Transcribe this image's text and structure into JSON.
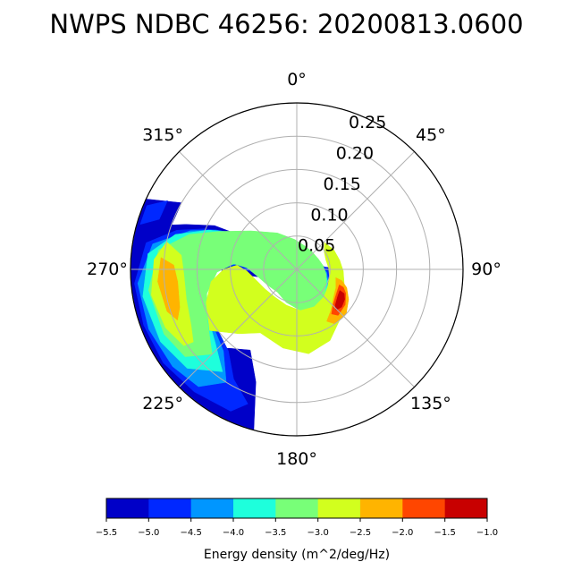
{
  "chart_data": {
    "type": "polar-contour",
    "title": "NWPS NDBC 46256: 20200813.0600",
    "angular_ticks": [
      "0°",
      "45°",
      "90°",
      "135°",
      "180°",
      "225°",
      "270°",
      "315°"
    ],
    "radial_ticks": [
      "0.05",
      "0.10",
      "0.15",
      "0.20",
      "0.25"
    ],
    "radial_tick_values": [
      0.05,
      0.1,
      0.15,
      0.2,
      0.25
    ],
    "radial_max": 0.25,
    "angle_zero": "top",
    "angle_direction": "clockwise",
    "grid": true,
    "colorbar": {
      "label": "Energy density (m^2/deg/Hz)",
      "ticks": [
        "−5.5",
        "−5.0",
        "−4.5",
        "−4.0",
        "−3.5",
        "−3.0",
        "−2.5",
        "−2.0",
        "−1.5",
        "−1.0"
      ],
      "levels": [
        -5.5,
        -5.0,
        -4.5,
        -4.0,
        -3.5,
        -3.0,
        -2.5,
        -2.0,
        -1.5,
        -1.0
      ],
      "colors": [
        "#0000c8",
        "#0028ff",
        "#0096ff",
        "#1effdc",
        "#78ff78",
        "#d2ff1e",
        "#ffb400",
        "#ff4600",
        "#c80000"
      ],
      "orientation": "horizontal",
      "placement": "bottom"
    },
    "contours": [
      {
        "level": -5.5,
        "regions": [
          [
            [
              195,
              0.25
            ],
            [
              200,
              0.18
            ],
            [
              210,
              0.14
            ],
            [
              220,
              0.155
            ],
            [
              232,
              0.19
            ],
            [
              240,
              0.22
            ],
            [
              247,
              0.22
            ],
            [
              258,
              0.21
            ],
            [
              265,
              0.2
            ],
            [
              270,
              0.12
            ],
            [
              262,
              0.07
            ],
            [
              250,
              0.04
            ],
            [
              230,
              0.03
            ],
            [
              200,
              0.02
            ],
            [
              160,
              0.04
            ],
            [
              140,
              0.07
            ],
            [
              125,
              0.085
            ],
            [
              115,
              0.06
            ],
            [
              100,
              0.05
            ],
            [
              88,
              0.055
            ],
            [
              80,
              0.03
            ],
            [
              70,
              0.02
            ],
            [
              60,
              0.015
            ],
            [
              40,
              0.015
            ],
            [
              20,
              0.02
            ],
            [
              5,
              0.03
            ],
            [
              -10,
              0.04
            ],
            [
              -30,
              0.05
            ],
            [
              -55,
              0.07
            ],
            [
              -60,
              0.11
            ],
            [
              -62,
              0.14
            ],
            [
              -68,
              0.18
            ],
            [
              -75,
              0.25
            ],
            [
              -85,
              0.25
            ],
            [
              -95,
              0.25
            ],
            [
              -105,
              0.25
            ],
            [
              -115,
              0.25
            ],
            [
              -125,
              0.25
            ],
            [
              -135,
              0.25
            ],
            [
              -145,
              0.25
            ],
            [
              -155,
              0.25
            ],
            [
              -165,
              0.25
            ]
          ],
          [
            [
              300,
              0.2
            ],
            [
              295,
              0.25
            ],
            [
              285,
              0.25
            ],
            [
              288,
              0.2
            ]
          ]
        ]
      },
      {
        "level": -5.0,
        "regions": [
          [
            [
              200,
              0.215
            ],
            [
              210,
              0.19
            ],
            [
              220,
              0.16
            ],
            [
              232,
              0.15
            ],
            [
              245,
              0.17
            ],
            [
              255,
              0.19
            ],
            [
              268,
              0.17
            ],
            [
              272,
              0.1
            ],
            [
              265,
              0.06
            ],
            [
              250,
              0.045
            ],
            [
              232,
              0.035
            ],
            [
              205,
              0.03
            ],
            [
              175,
              0.05
            ],
            [
              150,
              0.075
            ],
            [
              130,
              0.07
            ],
            [
              118,
              0.06
            ],
            [
              102,
              0.05
            ],
            [
              90,
              0.05
            ],
            [
              78,
              0.035
            ],
            [
              65,
              0.025
            ],
            [
              50,
              0.02
            ],
            [
              35,
              0.02
            ],
            [
              15,
              0.022
            ],
            [
              -5,
              0.03
            ],
            [
              -25,
              0.04
            ],
            [
              -45,
              0.06
            ],
            [
              -57,
              0.09
            ],
            [
              -62,
              0.12
            ],
            [
              -66,
              0.15
            ],
            [
              -72,
              0.19
            ],
            [
              -80,
              0.23
            ],
            [
              -95,
              0.245
            ],
            [
              -110,
              0.245
            ],
            [
              -125,
              0.245
            ],
            [
              -140,
              0.24
            ],
            [
              -155,
              0.235
            ]
          ],
          [
            [
              298,
              0.22
            ],
            [
              293,
              0.245
            ],
            [
              286,
              0.245
            ],
            [
              290,
              0.22
            ]
          ]
        ]
      },
      {
        "level": -4.5,
        "regions": [
          [
            [
              212,
              0.2
            ],
            [
              222,
              0.165
            ],
            [
              240,
              0.15
            ],
            [
              256,
              0.16
            ],
            [
              270,
              0.14
            ],
            [
              275,
              0.09
            ],
            [
              268,
              0.065
            ],
            [
              255,
              0.05
            ],
            [
              235,
              0.038
            ],
            [
              210,
              0.035
            ],
            [
              185,
              0.05
            ],
            [
              160,
              0.07
            ],
            [
              140,
              0.07
            ],
            [
              125,
              0.06
            ],
            [
              110,
              0.05
            ],
            [
              95,
              0.045
            ],
            [
              80,
              0.035
            ],
            [
              62,
              0.03
            ],
            [
              40,
              0.025
            ],
            [
              18,
              0.027
            ],
            [
              -5,
              0.035
            ],
            [
              -28,
              0.048
            ],
            [
              -48,
              0.07
            ],
            [
              -58,
              0.1
            ],
            [
              -64,
              0.135
            ],
            [
              -70,
              0.17
            ],
            [
              -80,
              0.22
            ],
            [
              -95,
              0.24
            ],
            [
              -112,
              0.24
            ],
            [
              -128,
              0.237
            ],
            [
              -140,
              0.23
            ]
          ]
        ]
      },
      {
        "level": -4.0,
        "regions": [
          [
            [
              216,
              0.19
            ],
            [
              228,
              0.165
            ],
            [
              245,
              0.15
            ],
            [
              258,
              0.15
            ],
            [
              270,
              0.13
            ],
            [
              276,
              0.09
            ],
            [
              270,
              0.07
            ],
            [
              257,
              0.055
            ],
            [
              238,
              0.044
            ],
            [
              215,
              0.04
            ],
            [
              190,
              0.05
            ],
            [
              165,
              0.065
            ],
            [
              145,
              0.065
            ],
            [
              128,
              0.058
            ],
            [
              112,
              0.05
            ],
            [
              96,
              0.043
            ],
            [
              80,
              0.038
            ],
            [
              62,
              0.033
            ],
            [
              40,
              0.03
            ],
            [
              18,
              0.032
            ],
            [
              -5,
              0.04
            ],
            [
              -28,
              0.055
            ],
            [
              -48,
              0.078
            ],
            [
              -60,
              0.11
            ],
            [
              -66,
              0.145
            ],
            [
              -74,
              0.19
            ],
            [
              -84,
              0.225
            ],
            [
              -100,
              0.235
            ],
            [
              -118,
              0.232
            ],
            [
              -132,
              0.222
            ]
          ]
        ]
      },
      {
        "level": -3.5,
        "regions": [
          [
            [
              225,
              0.18
            ],
            [
              240,
              0.155
            ],
            [
              255,
              0.14
            ],
            [
              268,
              0.12
            ],
            [
              275,
              0.095
            ],
            [
              272,
              0.075
            ],
            [
              260,
              0.06
            ],
            [
              242,
              0.05
            ],
            [
              220,
              0.045
            ],
            [
              198,
              0.052
            ],
            [
              175,
              0.062
            ],
            [
              155,
              0.063
            ],
            [
              135,
              0.058
            ],
            [
              118,
              0.05
            ],
            [
              100,
              0.045
            ],
            [
              82,
              0.04
            ],
            [
              64,
              0.036
            ],
            [
              42,
              0.035
            ],
            [
              20,
              0.037
            ],
            [
              -4,
              0.045
            ],
            [
              -28,
              0.062
            ],
            [
              -50,
              0.09
            ],
            [
              -64,
              0.13
            ],
            [
              -72,
              0.17
            ],
            [
              -82,
              0.21
            ],
            [
              -98,
              0.225
            ],
            [
              -116,
              0.222
            ],
            [
              -128,
              0.213
            ]
          ]
        ]
      },
      {
        "level": -3.0,
        "regions": [
          [
            [
              -78,
              0.2
            ],
            [
              -86,
              0.215
            ],
            [
              -100,
              0.222
            ],
            [
              -114,
              0.216
            ],
            [
              -124,
              0.205
            ],
            [
              -125,
              0.19
            ],
            [
              -118,
              0.18
            ],
            [
              -105,
              0.172
            ],
            [
              -92,
              0.17
            ],
            [
              -83,
              0.175
            ]
          ],
          [
            [
              235,
              0.16
            ],
            [
              250,
              0.145
            ],
            [
              262,
              0.13
            ],
            [
              270,
              0.11
            ],
            [
              274,
              0.09
            ],
            [
              268,
              0.075
            ],
            [
              255,
              0.063
            ],
            [
              238,
              0.056
            ],
            [
              218,
              0.053
            ],
            [
              196,
              0.056
            ],
            [
              175,
              0.062
            ],
            [
              155,
              0.062
            ],
            [
              135,
              0.058
            ],
            [
              118,
              0.053
            ],
            [
              102,
              0.05
            ],
            [
              88,
              0.048
            ],
            [
              72,
              0.046
            ],
            [
              57,
              0.049
            ],
            [
              46,
              0.058
            ],
            [
              62,
              0.063
            ],
            [
              78,
              0.066
            ],
            [
              92,
              0.07
            ],
            [
              108,
              0.075
            ],
            [
              124,
              0.085
            ],
            [
              140,
              0.1
            ],
            [
              155,
              0.118
            ],
            [
              172,
              0.128
            ],
            [
              190,
              0.12
            ],
            [
              210,
              0.11
            ],
            [
              222,
              0.13
            ]
          ]
        ]
      },
      {
        "level": -2.5,
        "regions": [
          [
            [
              -85,
              0.205
            ],
            [
              -95,
              0.21
            ],
            [
              -108,
              0.205
            ],
            [
              -113,
              0.195
            ],
            [
              -108,
              0.185
            ],
            [
              -96,
              0.18
            ],
            [
              -88,
              0.185
            ]
          ],
          [
            [
              102,
              0.06
            ],
            [
              115,
              0.065
            ],
            [
              128,
              0.07
            ],
            [
              140,
              0.08
            ],
            [
              150,
              0.09
            ],
            [
              145,
              0.1
            ],
            [
              132,
              0.1
            ],
            [
              120,
              0.09
            ],
            [
              110,
              0.08
            ],
            [
              104,
              0.07
            ]
          ]
        ]
      },
      {
        "level": -2.0,
        "regions": [
          [
            [
              110,
              0.068
            ],
            [
              122,
              0.07
            ],
            [
              134,
              0.076
            ],
            [
              142,
              0.085
            ],
            [
              138,
              0.093
            ],
            [
              126,
              0.09
            ],
            [
              116,
              0.082
            ],
            [
              111,
              0.075
            ]
          ]
        ]
      },
      {
        "level": -1.5,
        "regions": [
          [
            [
              116,
              0.072
            ],
            [
              124,
              0.074
            ],
            [
              133,
              0.079
            ],
            [
              136,
              0.085
            ],
            [
              130,
              0.088
            ],
            [
              122,
              0.085
            ],
            [
              117,
              0.08
            ]
          ]
        ]
      }
    ]
  }
}
